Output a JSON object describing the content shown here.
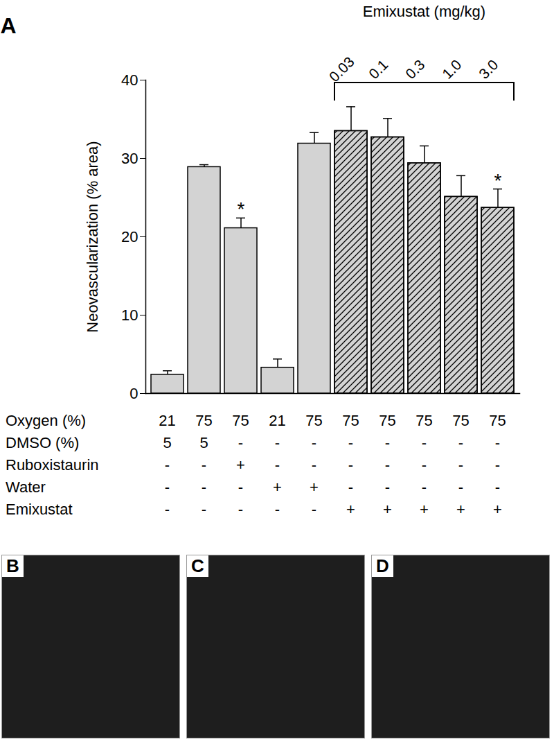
{
  "panel_label": "A",
  "chart_data": {
    "type": "bar",
    "categories": [
      null,
      null,
      null,
      null,
      null,
      null,
      null,
      null,
      null,
      null
    ],
    "values": [
      2.4,
      28.9,
      21.1,
      3.3,
      31.9,
      33.5,
      32.7,
      29.4,
      25.1,
      23.7
    ],
    "errors": [
      0.5,
      0.3,
      1.3,
      1.1,
      1.4,
      3.1,
      2.4,
      2.2,
      2.7,
      2.4
    ],
    "color": "#d3d3d3",
    "y_label": "Neovascularization (% area)",
    "ylim": [
      0,
      40
    ],
    "yticks": [
      0,
      10,
      20,
      30,
      40
    ],
    "tick_labels": "y",
    "annotations": [
      {
        "index": 2,
        "text": "*"
      },
      {
        "index": 9,
        "text": "*"
      }
    ],
    "bracket_title": "Emixustat (mg/kg)",
    "doses": [
      {
        "index": 5,
        "text": "0.03"
      },
      {
        "index": 6,
        "text": "0.1"
      },
      {
        "index": 7,
        "text": "0.3"
      },
      {
        "index": 8,
        "text": "1.0"
      },
      {
        "index": 9,
        "text": "3.0"
      }
    ],
    "condition_table": [
      {
        "label": "Oxygen (%)",
        "values": [
          21,
          75,
          75,
          21,
          75,
          75,
          75,
          75,
          75,
          75
        ]
      },
      {
        "label": "DMSO (%)",
        "values": [
          5,
          5,
          "-",
          "-",
          "-",
          "-",
          "-",
          "-",
          "-",
          "-"
        ]
      },
      {
        "label": "Ruboxistaurin",
        "values": [
          "-",
          "-",
          "+",
          "-",
          "-",
          "-",
          "-",
          "-",
          "-",
          "-"
        ]
      },
      {
        "label": "Water",
        "values": [
          "-",
          "-",
          "-",
          "+",
          "+",
          "-",
          "-",
          "-",
          "-",
          "-"
        ]
      },
      {
        "label": "Emixustat",
        "values": [
          "-",
          "-",
          "-",
          "-",
          "-",
          "+",
          "+",
          "+",
          "+",
          "+"
        ]
      }
    ]
  },
  "image_panels": [
    "B",
    "C",
    "D"
  ]
}
